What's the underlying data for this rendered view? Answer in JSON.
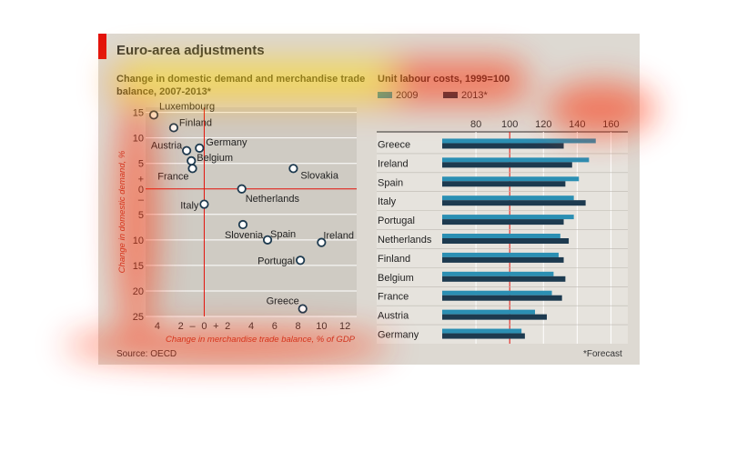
{
  "page": {
    "title": "Euro-area adjustments",
    "source": "Source: OECD",
    "footnote": "*Forecast"
  },
  "colors": {
    "accent_red": "#e3120b",
    "card_bg": "#ddd9d2",
    "plot_bg": "#cfcbc3",
    "bar_2009": "#2b8fb3",
    "bar_2013": "#1d3a4f",
    "axis_label": "#c0392b"
  },
  "chart_data": [
    {
      "type": "scatter",
      "title": "Change in domestic demand and merchandise trade balance, 2007-2013*",
      "title_lines": [
        "Change in domestic demand and merchandise trade",
        "balance, 2007-2013*"
      ],
      "xlabel": "Change in merchandise trade balance, % of GDP",
      "ylabel": "Change in domestic demand, %",
      "xlim": [
        -5,
        13
      ],
      "ylim": [
        -25,
        16
      ],
      "x_ticks": [
        {
          "v": -4,
          "label": "4"
        },
        {
          "v": -2,
          "label": "2"
        },
        {
          "v": -1,
          "label": "–"
        },
        {
          "v": 0,
          "label": "0"
        },
        {
          "v": 1,
          "label": "+"
        },
        {
          "v": 2,
          "label": "2"
        },
        {
          "v": 4,
          "label": "4"
        },
        {
          "v": 6,
          "label": "6"
        },
        {
          "v": 8,
          "label": "8"
        },
        {
          "v": 10,
          "label": "10"
        },
        {
          "v": 12,
          "label": "12"
        }
      ],
      "y_ticks": [
        {
          "v": 15,
          "label": "15"
        },
        {
          "v": 10,
          "label": "10"
        },
        {
          "v": 5,
          "label": "5"
        },
        {
          "v": 2,
          "label": "+"
        },
        {
          "v": 0,
          "label": "0"
        },
        {
          "v": -2,
          "label": "–"
        },
        {
          "v": -5,
          "label": "5"
        },
        {
          "v": -10,
          "label": "10"
        },
        {
          "v": -15,
          "label": "15"
        },
        {
          "v": -20,
          "label": "20"
        },
        {
          "v": -25,
          "label": "25"
        }
      ],
      "points": [
        {
          "name": "Luxembourg",
          "x": -4.3,
          "y": 14.5
        },
        {
          "name": "Finland",
          "x": -2.6,
          "y": 12.0
        },
        {
          "name": "Germany",
          "x": -0.4,
          "y": 8.0
        },
        {
          "name": "Austria",
          "x": -1.5,
          "y": 7.5
        },
        {
          "name": "Belgium",
          "x": -1.1,
          "y": 5.5
        },
        {
          "name": "France",
          "x": -1.0,
          "y": 4.0
        },
        {
          "name": "Slovakia",
          "x": 7.6,
          "y": 4.0
        },
        {
          "name": "Netherlands",
          "x": 3.2,
          "y": 0.0
        },
        {
          "name": "Italy",
          "x": 0.0,
          "y": -3.0
        },
        {
          "name": "Slovenia",
          "x": 3.3,
          "y": -7.0
        },
        {
          "name": "Spain",
          "x": 5.4,
          "y": -10.0
        },
        {
          "name": "Ireland",
          "x": 10.0,
          "y": -10.5
        },
        {
          "name": "Portugal",
          "x": 8.2,
          "y": -14.0
        },
        {
          "name": "Greece",
          "x": 8.4,
          "y": -23.5
        }
      ]
    },
    {
      "type": "bar",
      "orientation": "horizontal",
      "title": "Unit labour costs, 1999=100",
      "xlim": [
        60,
        170
      ],
      "x_ticks": [
        80,
        100,
        120,
        140,
        160
      ],
      "categories": [
        "Greece",
        "Ireland",
        "Spain",
        "Italy",
        "Portugal",
        "Netherlands",
        "Finland",
        "Belgium",
        "France",
        "Austria",
        "Germany"
      ],
      "series": [
        {
          "name": "2009",
          "values": [
            151,
            147,
            141,
            138,
            138,
            130,
            129,
            126,
            125,
            115,
            107
          ]
        },
        {
          "name": "2013*",
          "values": [
            132,
            137,
            133,
            145,
            132,
            135,
            132,
            133,
            131,
            122,
            109
          ]
        }
      ],
      "legend": "top-left"
    }
  ]
}
